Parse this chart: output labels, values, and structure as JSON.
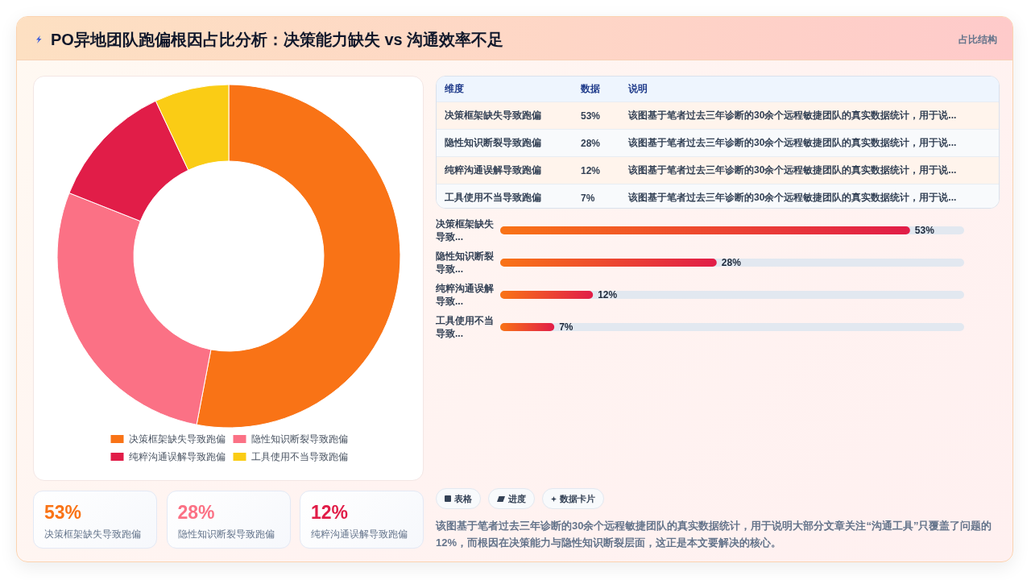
{
  "chart_data": [
    {
      "type": "other",
      "title": "PO异地团队跑偏根因占比分析：决策能力缺失 vs 沟通效率不足",
      "subtitle": "占比结构"
    },
    {
      "type": "donut",
      "categories": [
        "决策框架缺失导致跑偏",
        "隐性知识断裂导致跑偏",
        "纯粹沟通误解导致跑偏",
        "工具使用不当导致跑偏"
      ],
      "values": [
        53,
        28,
        12,
        7
      ],
      "colors": [
        "#f97316",
        "#fb7185",
        "#e11d48",
        "#facc15"
      ],
      "legend": "bottom"
    },
    {
      "type": "other",
      "categories": [
        "决策框架缺失导致跑偏",
        "隐性知识断裂导致跑偏",
        "纯粹沟通误解导致跑偏",
        "工具使用不当导致跑偏"
      ],
      "value_labels": [
        "53%",
        "28%",
        "12%",
        "7%"
      ],
      "annotations": [
        "维度",
        "数据",
        "说明",
        "该图基于笔者过去三年诊断的30余个远程敏捷团队的真实数据统计，用于说...",
        "该图基于笔者过去三年诊断的30余个远程敏捷团队的真实数据统计，用于说...",
        "该图基于笔者过去三年诊断的30余个远程敏捷团队的真实数据统计，用于说...",
        "该图基于笔者过去三年诊断的30余个远程敏捷团队的真实数据统计，用于说..."
      ]
    },
    {
      "type": "bar",
      "orientation": "horizontal",
      "categories": [
        "决策框架缺失导致...",
        "隐性知识断裂导致...",
        "纯粹沟通误解导致...",
        "工具使用不当导致..."
      ],
      "values": [
        53,
        28,
        12,
        7
      ],
      "value_labels": [
        "53%",
        "28%",
        "12%",
        "7%"
      ],
      "color": "#e11d48",
      "tick_labels": "y"
    },
    {
      "type": "other",
      "categories": [
        "决策框架缺失导致跑偏",
        "隐性知识断裂导致跑偏",
        "纯粹沟通误解导致跑偏"
      ],
      "value_labels": [
        "53%",
        "28%",
        "12%"
      ]
    },
    {
      "type": "other",
      "categories": [
        "表格",
        "进度",
        "数据卡片"
      ],
      "annotations": [
        "该图基于笔者过去三年诊断的30余个远程敏捷团队的真实数据统计，用于说明大部分文章关注“沟通工具”只覆盖了问题的12%，而根因在决策能力与隐性知识断裂层面，这正是本文要解决的核心。"
      ]
    }
  ]
}
